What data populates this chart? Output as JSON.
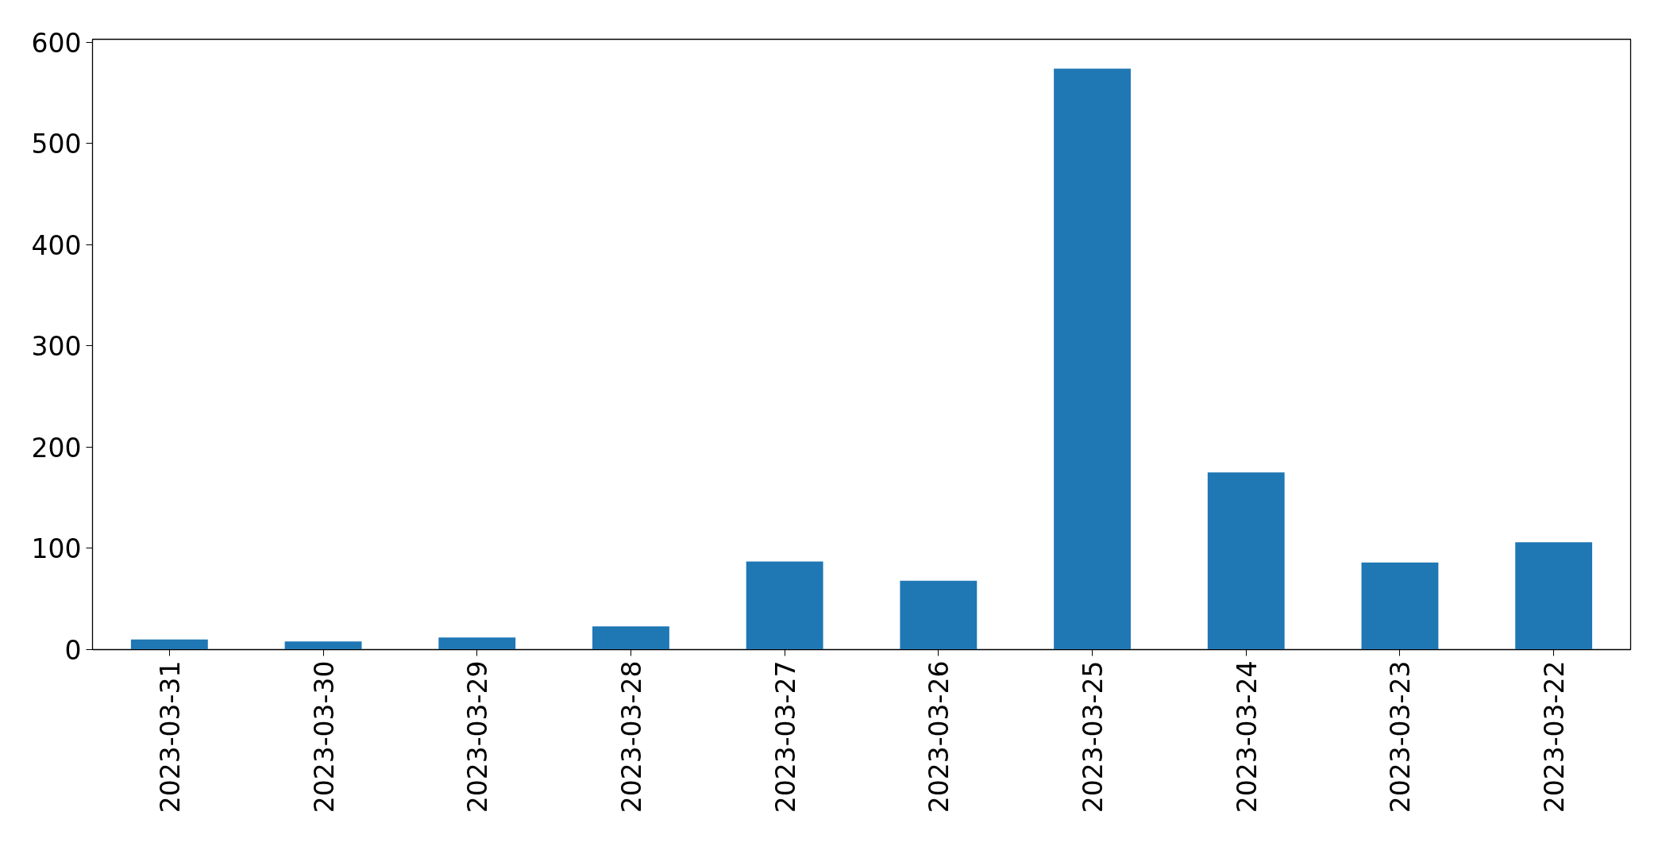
{
  "chart_data": {
    "type": "bar",
    "categories": [
      "2023-03-31",
      "2023-03-30",
      "2023-03-29",
      "2023-03-28",
      "2023-03-27",
      "2023-03-26",
      "2023-03-25",
      "2023-03-24",
      "2023-03-23",
      "2023-03-22"
    ],
    "values": [
      10,
      8,
      12,
      23,
      87,
      68,
      574,
      175,
      86,
      106
    ],
    "color": "#1f77b4",
    "ylim": [
      0,
      603
    ],
    "yticks": [
      0,
      100,
      200,
      300,
      400,
      500,
      600
    ],
    "grid": false
  }
}
